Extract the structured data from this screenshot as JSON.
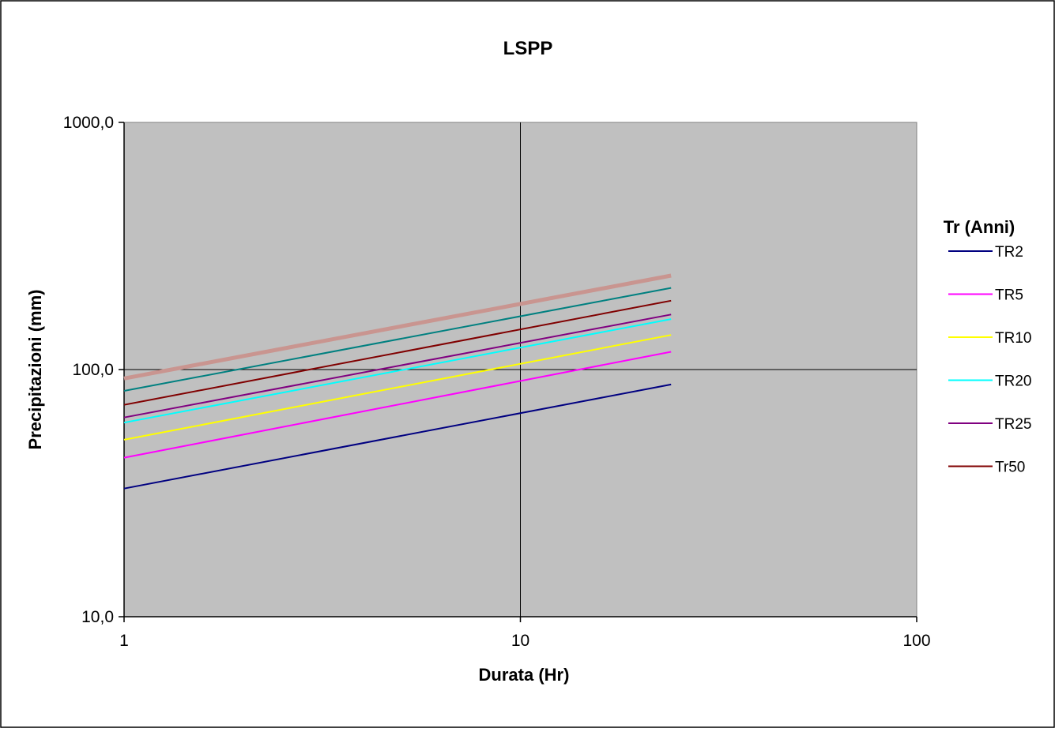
{
  "chart_data": {
    "type": "line",
    "title": "LSPP",
    "xlabel": "Durata (Hr)",
    "ylabel": "Precipitazioni (mm)",
    "x_scale": "log",
    "y_scale": "log",
    "xlim": [
      1,
      100
    ],
    "ylim": [
      10,
      1000
    ],
    "x_ticks": [
      1,
      10,
      100
    ],
    "x_tick_labels": [
      "1",
      "10",
      "100"
    ],
    "y_ticks": [
      10,
      100,
      1000
    ],
    "y_tick_labels": [
      "10,0",
      "100,0",
      "1000,0"
    ],
    "grid": true,
    "plot_background": "#c0c0c0",
    "legend": {
      "title": "Tr (Anni)",
      "position": "right"
    },
    "x": [
      1,
      24
    ],
    "series": [
      {
        "name": "TR2",
        "values": [
          33,
          87
        ],
        "color": "#000080",
        "width": 2
      },
      {
        "name": "TR5",
        "values": [
          44,
          118
        ],
        "color": "#ff00ff",
        "width": 2
      },
      {
        "name": "TR10",
        "values": [
          52,
          138
        ],
        "color": "#ffff00",
        "width": 2
      },
      {
        "name": "TR20",
        "values": [
          61,
          160
        ],
        "color": "#00ffff",
        "width": 2
      },
      {
        "name": "TR25",
        "values": [
          64,
          167
        ],
        "color": "#800080",
        "width": 2
      },
      {
        "name": "Tr50",
        "values": [
          72,
          190
        ],
        "color": "#800000",
        "width": 2
      },
      {
        "name": "",
        "values": [
          82,
          214
        ],
        "color": "#008080",
        "width": 2
      },
      {
        "name": "",
        "values": [
          92,
          240
        ],
        "color": "#c99590",
        "width": 5
      }
    ]
  }
}
